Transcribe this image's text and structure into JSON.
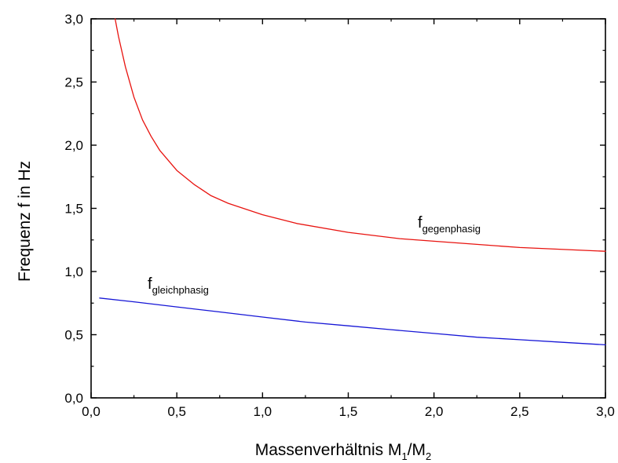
{
  "chart_data": {
    "type": "line",
    "title": "",
    "xlabel": {
      "main": "Massenverhältnis M",
      "sub1": "1",
      "mid": "/M",
      "sub2": "2"
    },
    "ylabel": "Frequenz  f  in  Hz",
    "xlim": [
      0.0,
      3.0
    ],
    "ylim": [
      0.0,
      3.0
    ],
    "xticks": [
      "0,0",
      "0,5",
      "1,0",
      "1,5",
      "2,0",
      "2,5",
      "3,0"
    ],
    "yticks": [
      "0,0",
      "0,5",
      "1,0",
      "1,5",
      "2,0",
      "2,5",
      "3,0"
    ],
    "xtick_values": [
      0.0,
      0.5,
      1.0,
      1.5,
      2.0,
      2.5,
      3.0
    ],
    "ytick_values": [
      0.0,
      0.5,
      1.0,
      1.5,
      2.0,
      2.5,
      3.0
    ],
    "grid": false,
    "series": [
      {
        "label": {
          "base": "f",
          "sub": "gegenphasig"
        },
        "color": "#e8130f",
        "x": [
          0.14,
          0.16,
          0.2,
          0.25,
          0.3,
          0.35,
          0.4,
          0.5,
          0.6,
          0.7,
          0.8,
          1.0,
          1.2,
          1.5,
          1.8,
          2.0,
          2.5,
          3.0
        ],
        "y": [
          3.0,
          2.86,
          2.62,
          2.38,
          2.2,
          2.07,
          1.96,
          1.8,
          1.69,
          1.6,
          1.54,
          1.45,
          1.38,
          1.31,
          1.26,
          1.24,
          1.19,
          1.16
        ]
      },
      {
        "label": {
          "base": "f",
          "sub": "gleichphasig"
        },
        "color": "#1616d6",
        "x": [
          0.05,
          0.25,
          0.5,
          0.75,
          1.0,
          1.25,
          1.5,
          1.75,
          2.0,
          2.25,
          2.5,
          2.75,
          3.0
        ],
        "y": [
          0.79,
          0.76,
          0.72,
          0.68,
          0.64,
          0.6,
          0.57,
          0.54,
          0.51,
          0.48,
          0.46,
          0.44,
          0.42
        ]
      }
    ]
  }
}
